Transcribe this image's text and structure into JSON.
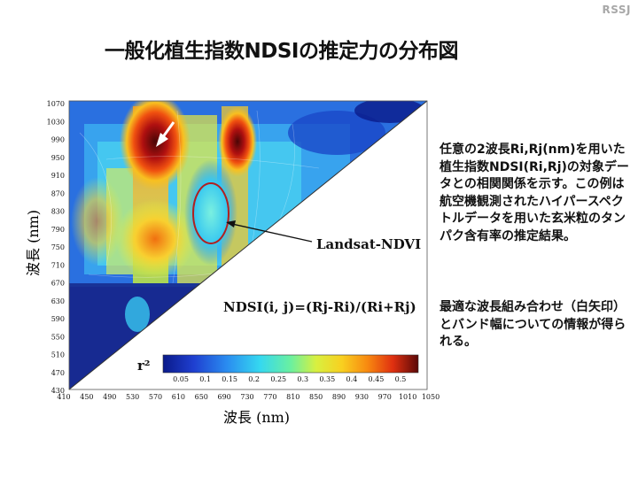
{
  "brand": "RSSJ",
  "title": "一般化植生指数NDSIの推定力の分布図",
  "axes": {
    "ylabel": "波長 (nm)",
    "xlabel": "波長 (nm)"
  },
  "chart_data": {
    "type": "heatmap",
    "y_ticks": [
      "1070",
      "1030",
      "990",
      "950",
      "910",
      "870",
      "830",
      "790",
      "750",
      "710",
      "670",
      "630",
      "590",
      "550",
      "510",
      "470",
      "430"
    ],
    "x_ticks": [
      "410",
      "450",
      "490",
      "530",
      "570",
      "610",
      "650",
      "690",
      "730",
      "770",
      "810",
      "850",
      "890",
      "930",
      "970",
      "1010",
      "1050"
    ],
    "colorbar": {
      "label": "r²",
      "ticks": [
        "0.05",
        "0.1",
        "0.15",
        "0.2",
        "0.25",
        "0.3",
        "0.35",
        "0.4",
        "0.45",
        "0.5"
      ],
      "colors": [
        "#0a1a8a",
        "#1f3fd0",
        "#2a8cf0",
        "#35d8f0",
        "#6af0a0",
        "#d8f040",
        "#f8d020",
        "#f88a10",
        "#e03010",
        "#6a0a0a"
      ]
    },
    "annotations": {
      "landsat": "Landsat-NDVI",
      "formula": "NDSI(i, j)=(Rj-Ri)/(Ri+Rj)"
    }
  },
  "description": {
    "p1": "任意の2波長Ri,Rj(nm)を用いた植生指数NDSI(Ri,Rj)の対象データとの相関関係を示す。この例は航空機観測されたハイパースペクトルデータを用いた玄米粒のタンパク含有率の推定結果。",
    "p2": "最適な波長組み合わせ（白矢印）とバンド幅についての情報が得られる。"
  },
  "colors": {
    "title": "#111111",
    "brand": "#a8a8a8",
    "marker": "#b02020"
  }
}
